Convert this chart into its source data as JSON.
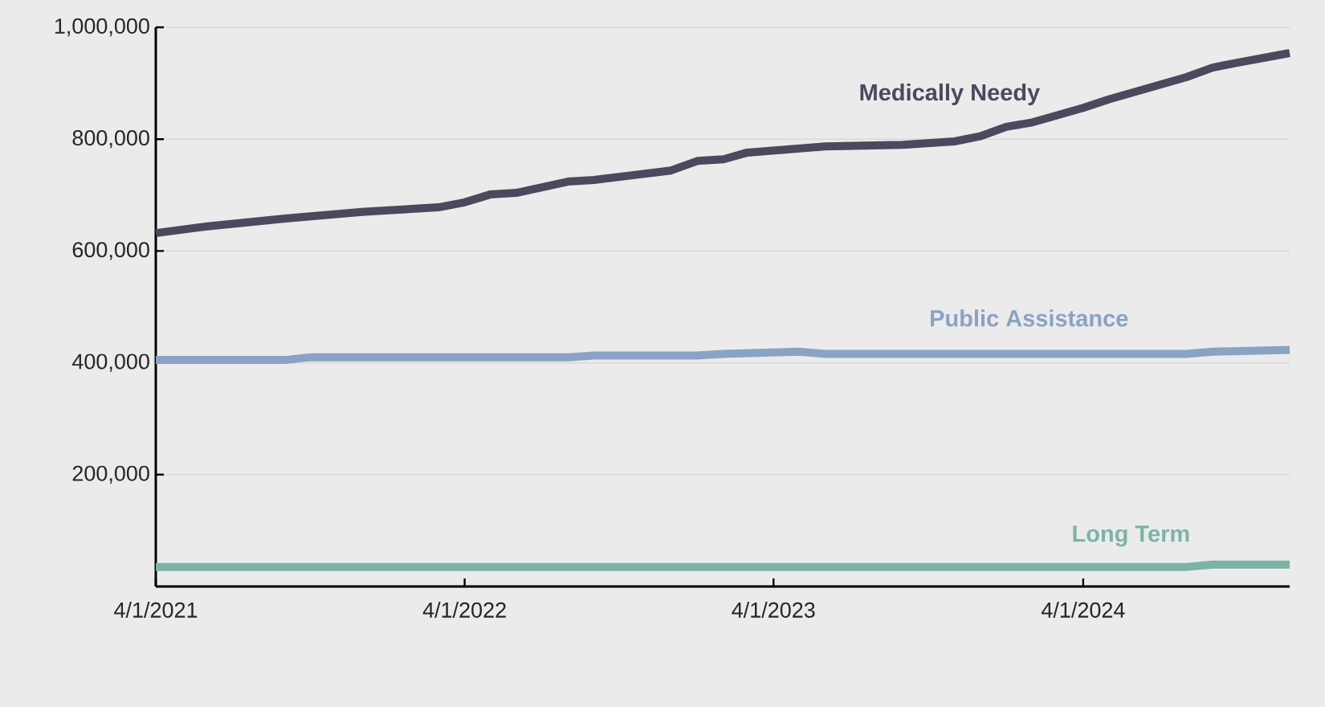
{
  "chart_data": {
    "type": "line",
    "series": [
      {
        "name": "Medically Needy",
        "color": "#4a4a5e",
        "x": [
          "2021-04-01",
          "2021-06-01",
          "2021-09-01",
          "2021-12-01",
          "2022-03-01",
          "2022-04-01",
          "2022-05-01",
          "2022-06-01",
          "2022-08-01",
          "2022-09-01",
          "2022-12-01",
          "2023-01-01",
          "2023-02-01",
          "2023-03-01",
          "2023-06-01",
          "2023-09-01",
          "2023-11-01",
          "2023-12-01",
          "2024-01-01",
          "2024-02-01",
          "2024-04-01",
          "2024-05-01",
          "2024-08-01",
          "2024-09-01",
          "2024-10-01",
          "2024-12-01"
        ],
        "values": [
          632000,
          644000,
          658000,
          670000,
          678000,
          687000,
          701000,
          704000,
          724000,
          727000,
          744000,
          761000,
          764000,
          776000,
          787000,
          790000,
          796000,
          805000,
          822000,
          830000,
          856000,
          871000,
          911000,
          928000,
          937000,
          954000
        ]
      },
      {
        "name": "Public Assistance",
        "color": "#8aa3c4",
        "x": [
          "2021-04-01",
          "2021-09-01",
          "2021-10-01",
          "2022-08-01",
          "2022-09-01",
          "2023-01-01",
          "2023-02-01",
          "2023-05-01",
          "2023-06-01",
          "2024-08-01",
          "2024-09-01",
          "2024-12-01"
        ],
        "values": [
          405000,
          405000,
          410000,
          410000,
          413000,
          413000,
          416000,
          420000,
          416000,
          416000,
          420000,
          423000
        ]
      },
      {
        "name": "Long Term",
        "color": "#7db3a6",
        "x": [
          "2021-04-01",
          "2024-08-01",
          "2024-09-01",
          "2024-12-01"
        ],
        "values": [
          35000,
          35000,
          39000,
          39000
        ]
      }
    ],
    "xlim": [
      "2021-04-01",
      "2024-12-01"
    ],
    "xticks": [
      {
        "value": "2021-04-01",
        "label": "4/1/2021"
      },
      {
        "value": "2022-04-01",
        "label": "4/1/2022"
      },
      {
        "value": "2023-04-01",
        "label": "4/1/2023"
      },
      {
        "value": "2024-04-01",
        "label": "4/1/2024"
      }
    ],
    "ylim": [
      0,
      1000000
    ],
    "yticks": [
      {
        "value": 200000,
        "label": "200,000"
      },
      {
        "value": 400000,
        "label": "400,000"
      },
      {
        "value": 600000,
        "label": "600,000"
      },
      {
        "value": 800000,
        "label": "800,000"
      },
      {
        "value": 1000000,
        "label": "1,000,000"
      }
    ],
    "grid": "y",
    "line_style": "solid",
    "marker": "none"
  }
}
